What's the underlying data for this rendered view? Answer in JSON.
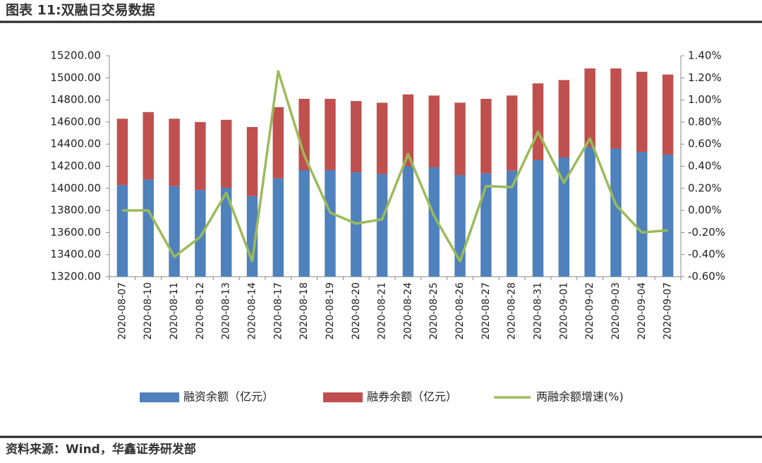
{
  "chart_data": {
    "type": "stacked-bar-line",
    "title": "图表 11:双融日交易数据",
    "source": "资料来源：Wind，华鑫证券研发部",
    "categories": [
      "2020-08-07",
      "2020-08-10",
      "2020-08-11",
      "2020-08-12",
      "2020-08-13",
      "2020-08-14",
      "2020-08-17",
      "2020-08-18",
      "2020-08-19",
      "2020-08-20",
      "2020-08-21",
      "2020-08-24",
      "2020-08-25",
      "2020-08-26",
      "2020-08-27",
      "2020-08-28",
      "2020-08-31",
      "2020-09-01",
      "2020-09-02",
      "2020-09-03",
      "2020-09-04",
      "2020-09-07"
    ],
    "series": [
      {
        "name": "融资余额（亿元）",
        "color": "#4f81bd",
        "type": "bar",
        "values": [
          14030,
          14080,
          14020,
          13985,
          14005,
          13930,
          14090,
          14165,
          14165,
          14145,
          14130,
          14200,
          14190,
          14120,
          14135,
          14160,
          14255,
          14280,
          14375,
          14360,
          14330,
          14305
        ]
      },
      {
        "name": "融券余额（亿元）",
        "color": "#c0504d",
        "type": "bar",
        "values": [
          600,
          610,
          610,
          615,
          615,
          625,
          645,
          645,
          645,
          645,
          645,
          650,
          650,
          655,
          675,
          680,
          695,
          700,
          710,
          725,
          725,
          725
        ]
      },
      {
        "name": "两融余额增速(%)",
        "color": "#9bbb59",
        "type": "line",
        "axis": "y2",
        "values": [
          0.0,
          0.0,
          -0.42,
          -0.24,
          0.16,
          -0.46,
          1.26,
          0.5,
          -0.02,
          -0.12,
          -0.08,
          0.51,
          -0.05,
          -0.46,
          0.22,
          0.21,
          0.71,
          0.25,
          0.65,
          0.05,
          -0.2,
          -0.18
        ]
      }
    ],
    "ylim": [
      13200,
      15200
    ],
    "yticks": [
      {
        "value": 13200,
        "label": "13200.00"
      },
      {
        "value": 13400,
        "label": "13400.00"
      },
      {
        "value": 13600,
        "label": "13600.00"
      },
      {
        "value": 13800,
        "label": "13800.00"
      },
      {
        "value": 14000,
        "label": "14000.00"
      },
      {
        "value": 14200,
        "label": "14200.00"
      },
      {
        "value": 14400,
        "label": "14400.00"
      },
      {
        "value": 14600,
        "label": "14600.00"
      },
      {
        "value": 14800,
        "label": "14800.00"
      },
      {
        "value": 15000,
        "label": "15000.00"
      },
      {
        "value": 15200,
        "label": "15200.00"
      }
    ],
    "y2lim": [
      -0.6,
      1.4
    ],
    "y2ticks": [
      {
        "value": -0.6,
        "label": "-0.60%"
      },
      {
        "value": -0.4,
        "label": "-0.40%"
      },
      {
        "value": -0.2,
        "label": "-0.20%"
      },
      {
        "value": 0,
        "label": "0.00%"
      },
      {
        "value": 0.2,
        "label": "0.20%"
      },
      {
        "value": 0.4,
        "label": "0.40%"
      },
      {
        "value": 0.6,
        "label": "0.60%"
      },
      {
        "value": 0.8,
        "label": "0.80%"
      },
      {
        "value": 1.0,
        "label": "1.00%"
      },
      {
        "value": 1.2,
        "label": "1.20%"
      },
      {
        "value": 1.4,
        "label": "1.40%"
      }
    ],
    "grid": false,
    "legend": "bottom"
  }
}
